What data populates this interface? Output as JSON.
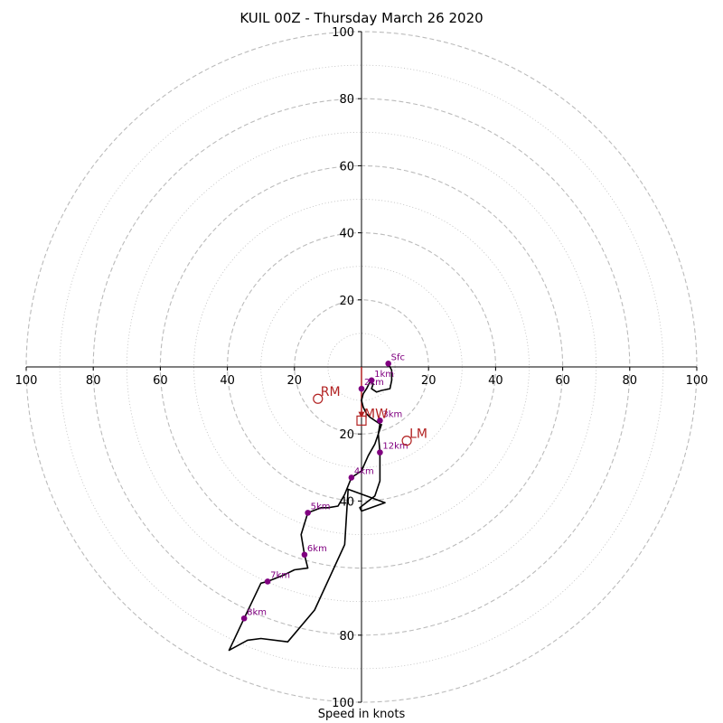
{
  "chart_data": {
    "type": "hodograph",
    "title": "KUIL 00Z - Thursday March 26 2020",
    "xlabel": "Speed in knots",
    "units": "knots",
    "range": 100,
    "ring_step_major": 20,
    "ring_step_minor": 10,
    "x_ticks": [
      "100",
      "80",
      "60",
      "40",
      "20",
      "20",
      "40",
      "60",
      "80",
      "100"
    ],
    "y_ticks_up": [
      "20",
      "40",
      "60",
      "80",
      "100"
    ],
    "y_ticks_down": [
      "20",
      "40",
      "80",
      "100"
    ],
    "trace_uv": [
      [
        8,
        1
      ],
      [
        9,
        -1
      ],
      [
        9,
        -4
      ],
      [
        8.5,
        -6.5
      ],
      [
        6,
        -7
      ],
      [
        4.5,
        -7.5
      ],
      [
        3,
        -6.5
      ],
      [
        3.5,
        -5
      ],
      [
        2.5,
        -4.5
      ],
      [
        1.5,
        -6.5
      ],
      [
        0.5,
        -8
      ],
      [
        0,
        -10
      ],
      [
        0.5,
        -12
      ],
      [
        1.5,
        -14
      ],
      [
        2.5,
        -15
      ],
      [
        4,
        -16
      ],
      [
        5.5,
        -17
      ],
      [
        5,
        -20
      ],
      [
        4,
        -23
      ],
      [
        2,
        -26.5
      ],
      [
        0,
        -31
      ],
      [
        -3,
        -33
      ],
      [
        -5,
        -38
      ],
      [
        -7,
        -41.5
      ],
      [
        -10,
        -42
      ],
      [
        -12,
        -42
      ],
      [
        -16,
        -43.5
      ],
      [
        -18,
        -50
      ],
      [
        -17,
        -56
      ],
      [
        -16,
        -60
      ],
      [
        -20,
        -60.5
      ],
      [
        -23,
        -62
      ],
      [
        -28,
        -64
      ],
      [
        -30,
        -64.5
      ],
      [
        -35,
        -75
      ],
      [
        -39.5,
        -84.5
      ],
      [
        -34,
        -81.5
      ],
      [
        -30,
        -81
      ],
      [
        -22,
        -82
      ],
      [
        -14,
        -72.5
      ],
      [
        -5,
        -53
      ],
      [
        -4,
        -36.5
      ],
      [
        7,
        -40.5
      ],
      [
        0,
        -43
      ],
      [
        -0.5,
        -42
      ],
      [
        4,
        -38.5
      ],
      [
        5.5,
        -34
      ],
      [
        5.5,
        -27.5
      ],
      [
        5.5,
        -25.5
      ],
      [
        5,
        -20
      ],
      [
        6,
        -17
      ]
    ],
    "height_markers": [
      {
        "label": "Sfc",
        "u": 8,
        "v": 1
      },
      {
        "label": "1km",
        "u": 3,
        "v": -4
      },
      {
        "label": "2km",
        "u": 0,
        "v": -6.5
      },
      {
        "label": "3km",
        "u": 5.5,
        "v": -16
      },
      {
        "label": "4km",
        "u": -3,
        "v": -33
      },
      {
        "label": "5km",
        "u": -16,
        "v": -43.5
      },
      {
        "label": "6km",
        "u": -17,
        "v": -56
      },
      {
        "label": "7km",
        "u": -28,
        "v": -64
      },
      {
        "label": "8km",
        "u": -35,
        "v": -75
      },
      {
        "label": "12km",
        "u": 5.5,
        "v": -25.5
      }
    ],
    "storm_motion": [
      {
        "label": "RM",
        "u": -13,
        "v": -9.5,
        "marker": "circle"
      },
      {
        "label": "LM",
        "u": 13.5,
        "v": -22,
        "marker": "circle"
      },
      {
        "label": "MW",
        "u": 0,
        "v": -16,
        "marker": "square"
      }
    ],
    "shear_vector": {
      "u1": 0,
      "v1": 0,
      "u2": 0,
      "v2": -15
    },
    "colors": {
      "trace": "#000000",
      "height_marker": "#800080",
      "storm_motion": "#b22222",
      "grid": "#bbbbbb"
    }
  }
}
